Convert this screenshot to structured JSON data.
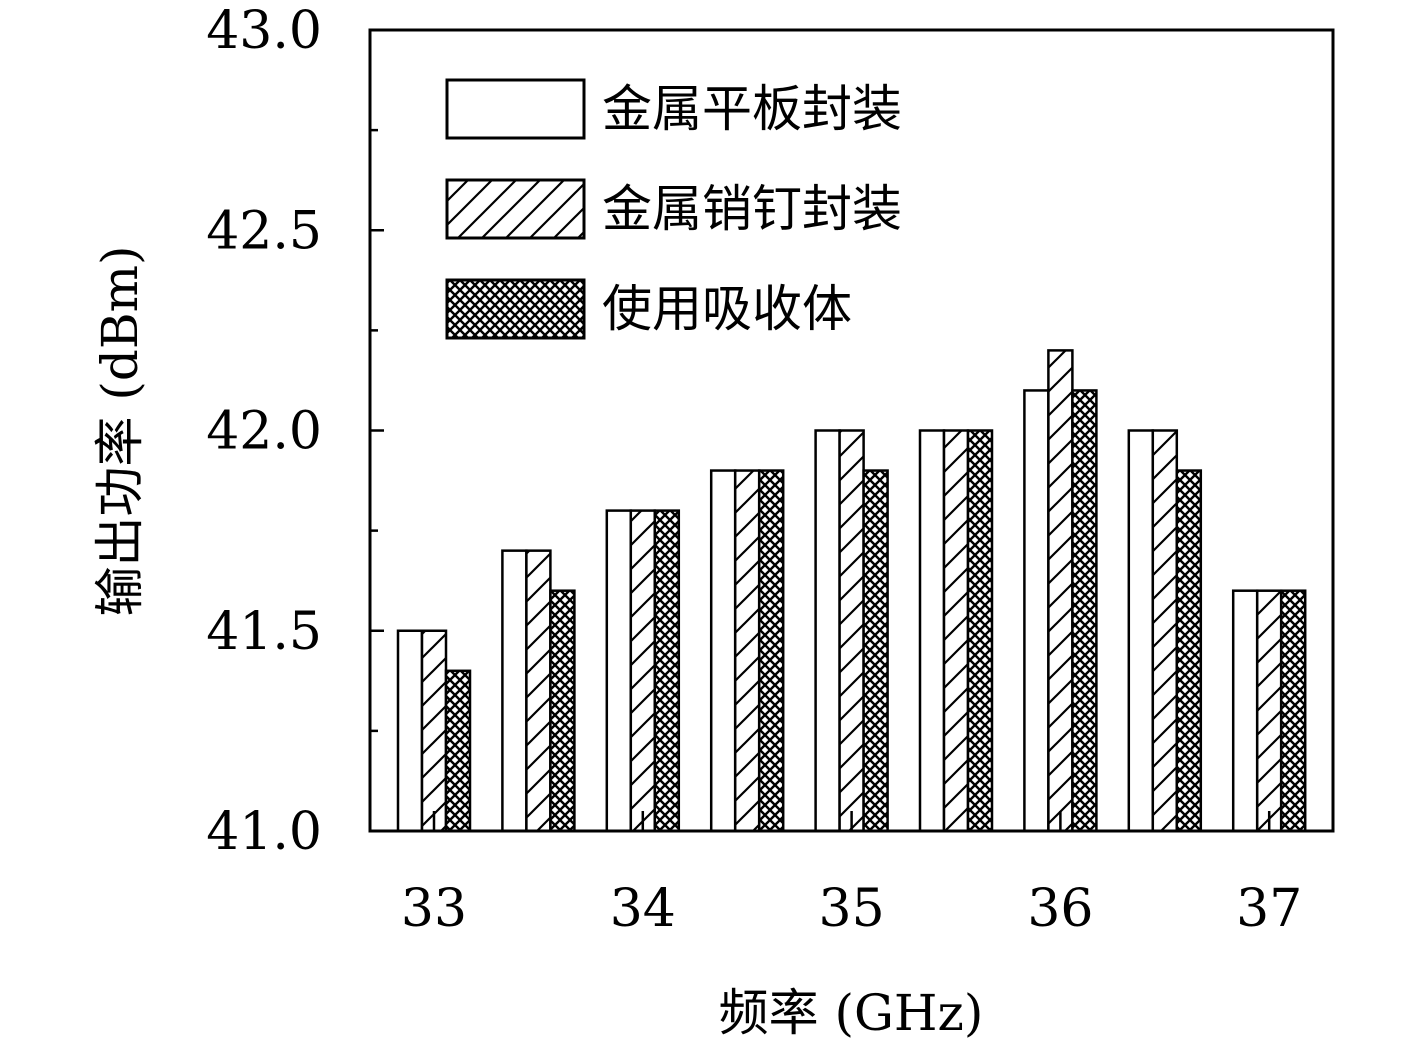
{
  "chart_data": {
    "type": "bar",
    "categories": [
      "33",
      "33.5",
      "34",
      "34.5",
      "35",
      "35.5",
      "36",
      "36.5",
      "37"
    ],
    "xticks": [
      "33",
      "34",
      "35",
      "36",
      "37"
    ],
    "xlabel": "频率 (GHz)",
    "ylabel": "输出功率 (dBm)",
    "ylim": [
      41.0,
      43.0
    ],
    "yticks": [
      "41.0",
      "41.5",
      "42.0",
      "42.5",
      "43.0"
    ],
    "series": [
      {
        "name": "金属平板封装",
        "pattern": "plain",
        "values": [
          41.5,
          41.7,
          41.8,
          41.9,
          42.0,
          42.0,
          42.1,
          42.0,
          41.6
        ]
      },
      {
        "name": "金属销钉封装",
        "pattern": "diagonal",
        "values": [
          41.5,
          41.7,
          41.8,
          41.9,
          42.0,
          42.0,
          42.2,
          42.0,
          41.6
        ]
      },
      {
        "name": "使用吸收体",
        "pattern": "crosshatch",
        "values": [
          41.4,
          41.6,
          41.8,
          41.9,
          41.9,
          42.0,
          42.1,
          41.9,
          41.6
        ]
      }
    ],
    "legend_position": "top-left",
    "grid": false
  }
}
